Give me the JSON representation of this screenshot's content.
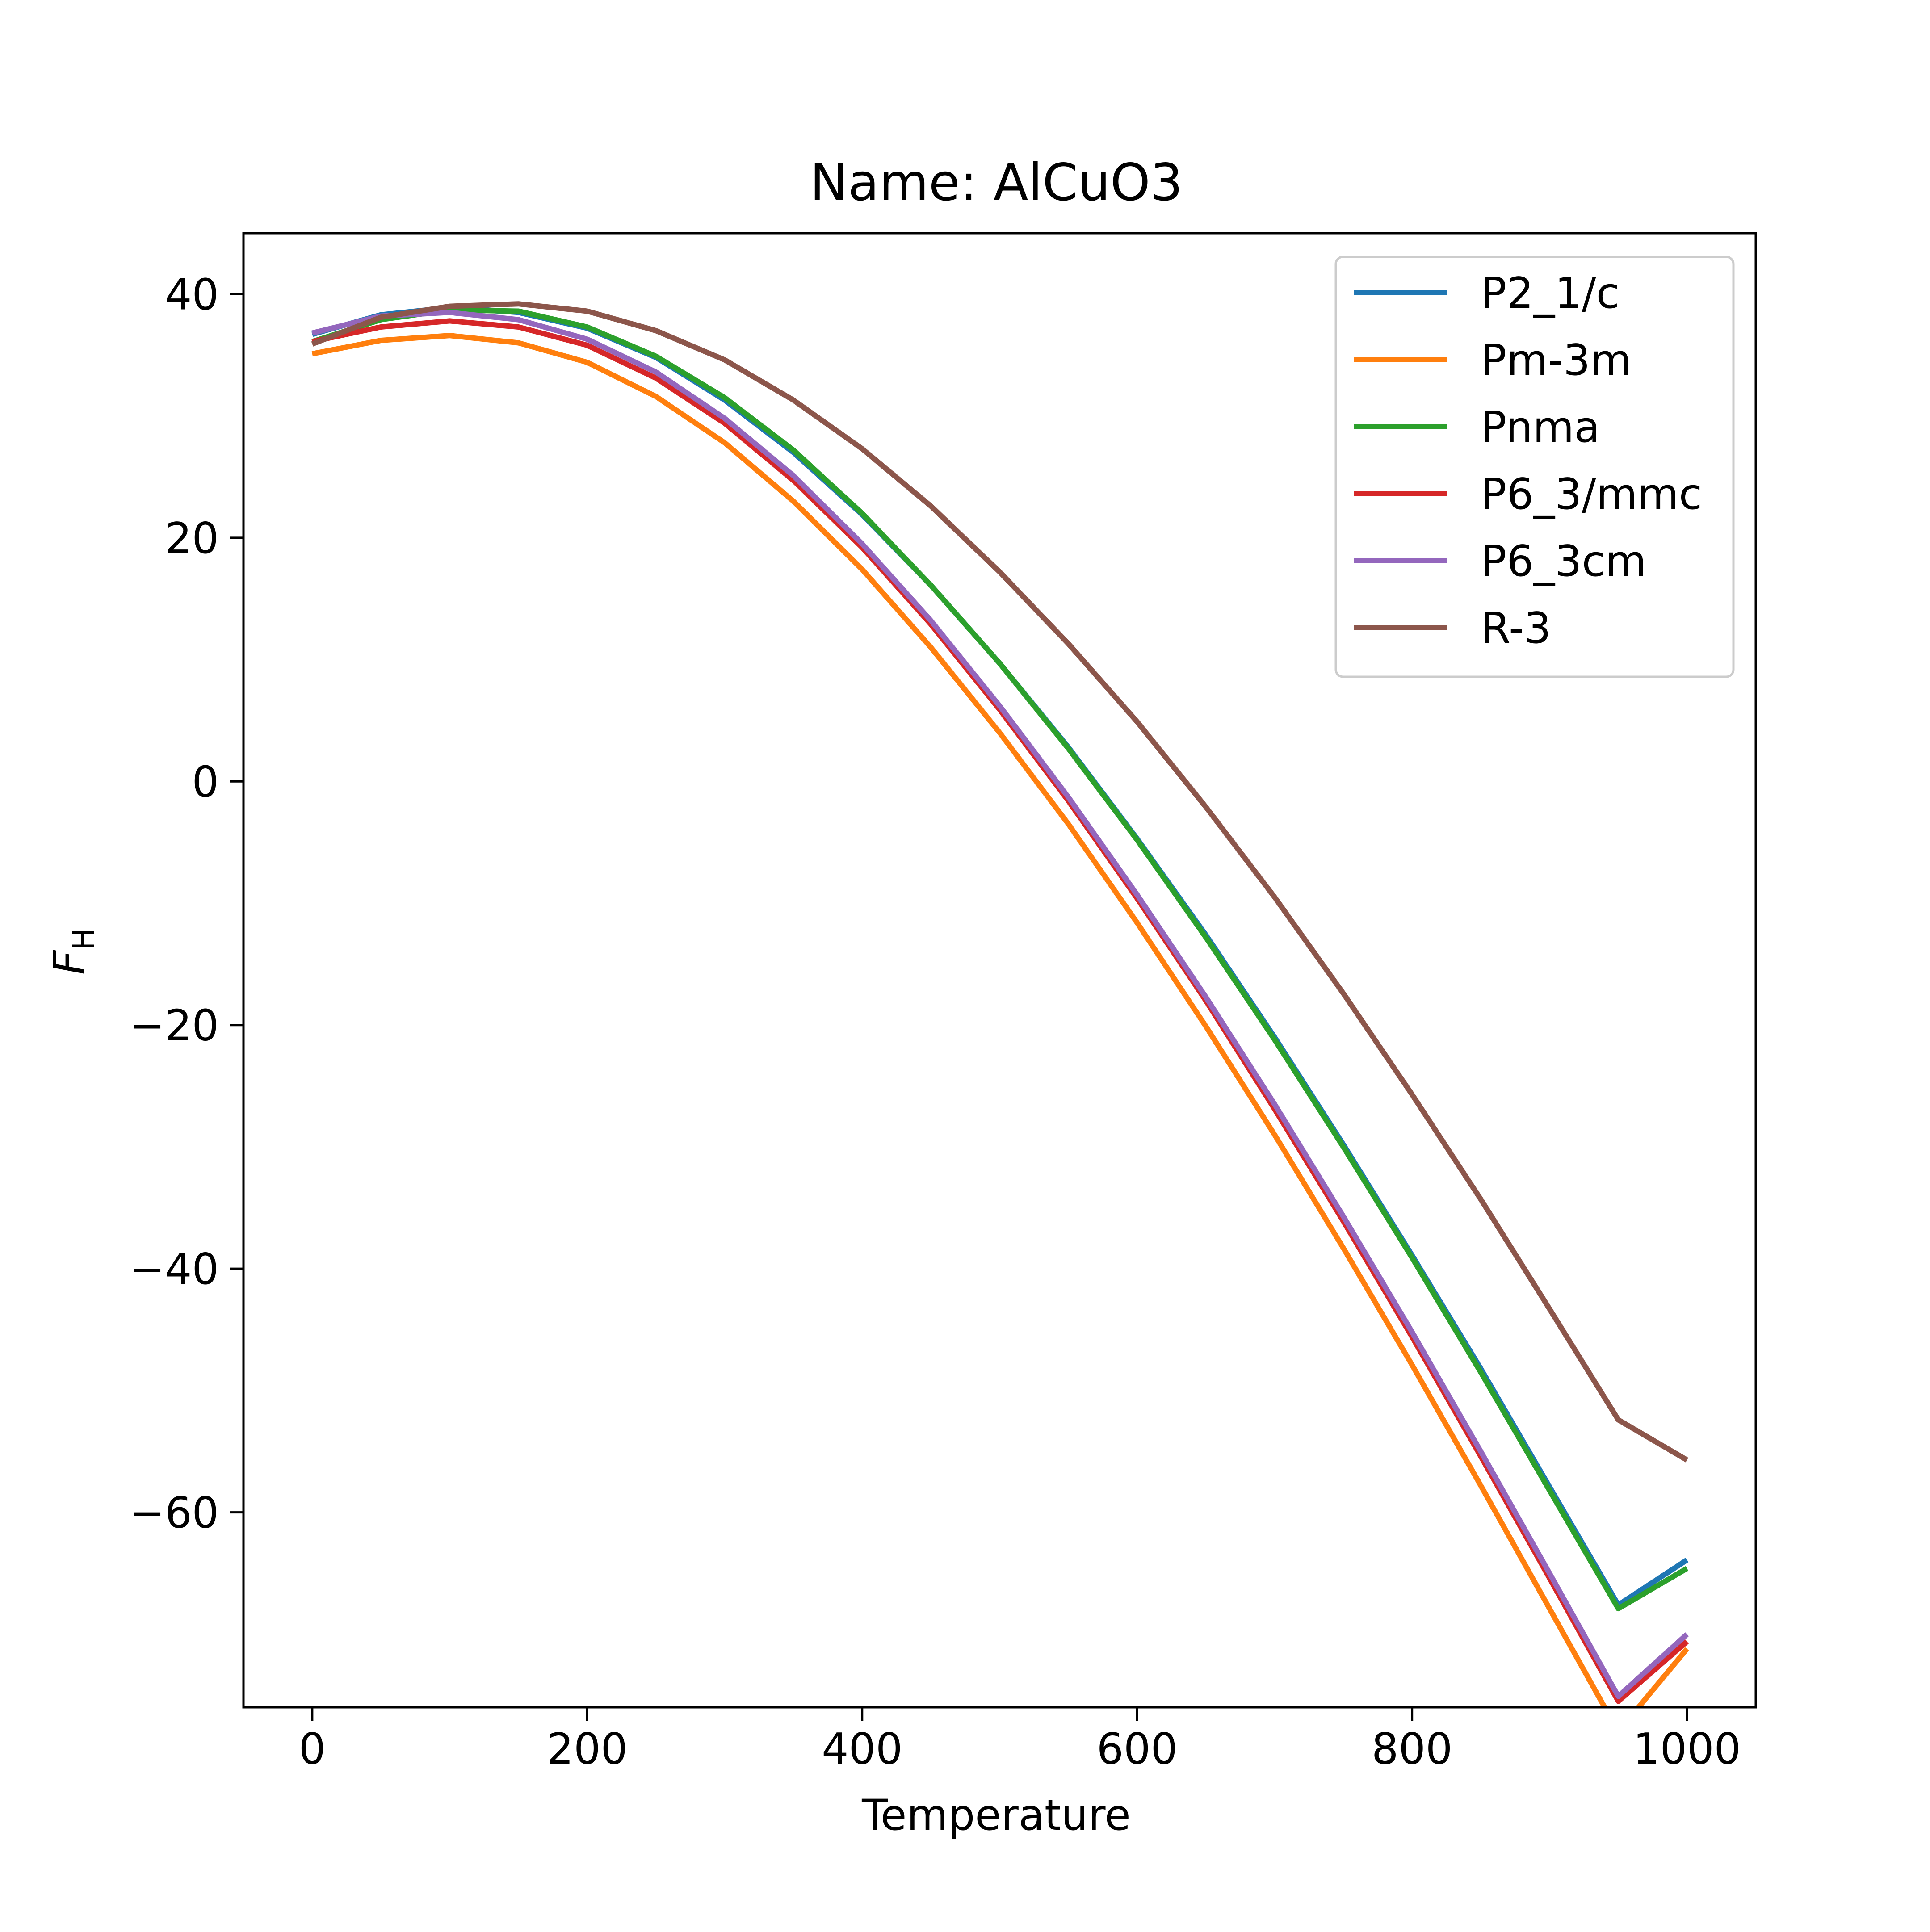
{
  "chart_data": {
    "type": "line",
    "title": "Name: AlCuO3",
    "xlabel": "Temperature",
    "ylabel_main": "F",
    "ylabel_sub": "H",
    "xlim": [
      -50,
      1050
    ],
    "ylim": [
      -76,
      45
    ],
    "x_ticks": [
      0,
      200,
      400,
      600,
      800,
      1000
    ],
    "y_ticks": [
      40,
      20,
      0,
      -20,
      -40,
      -60
    ],
    "x_tick_labels": [
      "0",
      "200",
      "400",
      "600",
      "800",
      "1000"
    ],
    "y_tick_labels": [
      "40",
      "20",
      "0",
      "−20",
      "−40",
      "−60"
    ],
    "grid": false,
    "legend_position": "top-right",
    "x": [
      0,
      50,
      100,
      150,
      200,
      250,
      300,
      350,
      400,
      450,
      500,
      550,
      600,
      650,
      700,
      750,
      800,
      850,
      900,
      950,
      1000
    ],
    "series": [
      {
        "name": "P2_1/c",
        "color": "#1f77b4",
        "values": [
          36.7,
          38.3,
          38.9,
          38.5,
          37.2,
          34.8,
          31.3,
          27.0,
          21.9,
          16.1,
          9.7,
          2.8,
          -4.7,
          -12.6,
          -21.0,
          -29.8,
          -38.9,
          -48.2,
          -57.9,
          -67.6,
          -63.9
        ]
      },
      {
        "name": "Pm-3m",
        "color": "#ff7f0e",
        "values": [
          35.1,
          36.2,
          36.6,
          36.0,
          34.4,
          31.6,
          27.8,
          23.0,
          17.4,
          11.0,
          4.0,
          -3.5,
          -11.6,
          -20.1,
          -29.0,
          -38.3,
          -47.9,
          -57.8,
          -67.9,
          -78.0,
          -71.2
        ]
      },
      {
        "name": "Pnma",
        "color": "#2ca02c",
        "values": [
          36.1,
          37.9,
          38.7,
          38.6,
          37.3,
          34.9,
          31.5,
          27.2,
          22.0,
          16.1,
          9.7,
          2.7,
          -4.8,
          -12.8,
          -21.2,
          -30.0,
          -39.1,
          -48.5,
          -58.2,
          -67.9,
          -64.6
        ]
      },
      {
        "name": "P6_3/mmc",
        "color": "#d62728",
        "values": [
          36.1,
          37.3,
          37.8,
          37.3,
          35.8,
          33.1,
          29.4,
          24.7,
          19.2,
          12.9,
          5.9,
          -1.6,
          -9.6,
          -18.0,
          -26.9,
          -36.1,
          -45.6,
          -55.4,
          -65.4,
          -75.5,
          -70.6
        ]
      },
      {
        "name": "P6_3cm",
        "color": "#9467bd",
        "values": [
          36.8,
          38.2,
          38.5,
          37.9,
          36.3,
          33.6,
          29.8,
          25.1,
          19.5,
          13.2,
          6.2,
          -1.3,
          -9.3,
          -17.7,
          -26.5,
          -35.7,
          -45.2,
          -55.0,
          -65.0,
          -75.1,
          -70.0
        ]
      },
      {
        "name": "R-3",
        "color": "#8c564b",
        "values": [
          35.9,
          38.1,
          39.0,
          39.2,
          38.6,
          37.0,
          34.6,
          31.3,
          27.3,
          22.6,
          17.2,
          11.3,
          4.9,
          -2.1,
          -9.5,
          -17.4,
          -25.7,
          -34.3,
          -43.3,
          -52.4,
          -55.7
        ]
      }
    ]
  }
}
